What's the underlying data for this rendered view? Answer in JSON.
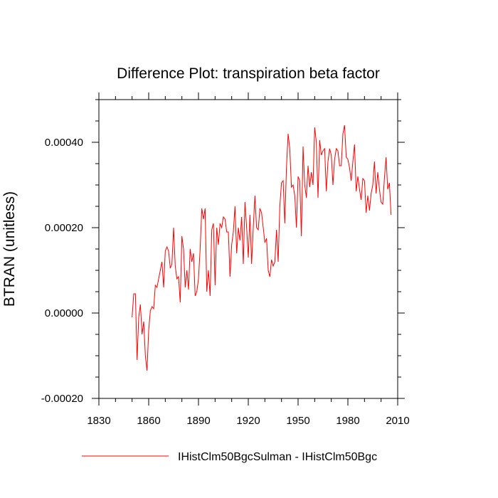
{
  "chart_data": {
    "type": "line",
    "title": "Difference Plot: transpiration beta factor",
    "xlabel": "",
    "ylabel": "BTRAN  (unitless)",
    "xlim": [
      1830,
      2010
    ],
    "ylim": [
      -0.0002,
      0.0005
    ],
    "x_ticks": [
      1830,
      1860,
      1890,
      1920,
      1950,
      1980,
      2010
    ],
    "x_tick_labels": [
      "1830",
      "1860",
      "1890",
      "1920",
      "1950",
      "1980",
      "2010"
    ],
    "y_ticks": [
      -0.0002,
      0,
      0.0002,
      0.0004
    ],
    "y_tick_labels": [
      "-0.00020",
      "0.00000",
      "0.00020",
      "0.00040"
    ],
    "grid": false,
    "legend_position": "bottom",
    "series": [
      {
        "name": "IHistClm50BgcSulman - IHistClm50Bgc",
        "color": "#ff0000",
        "x_start": 1850,
        "x_step": 1,
        "values": [
          -1e-05,
          4.5e-05,
          4.5e-05,
          -0.00011,
          -1e-05,
          2e-05,
          -5e-05,
          -2e-05,
          -0.0001,
          -0.000135,
          -4e-05,
          5e-06,
          1.5e-05,
          1e-05,
          6.5e-05,
          6e-05,
          8e-05,
          0.0001,
          0.00012,
          6e-05,
          0.000145,
          0.000155,
          0.000145,
          0.000105,
          0.000115,
          0.0002,
          0.00011,
          8e-05,
          8.5e-05,
          2.5e-05,
          0.00018,
          0.00015,
          6e-05,
          0.0001,
          5.5e-05,
          0.00015,
          0.00012,
          0.00014,
          4e-05,
          5e-05,
          8e-05,
          0.00015,
          0.000245,
          0.00022,
          0.000245,
          5e-05,
          0.0001,
          4e-05,
          0.000195,
          0.00021,
          6.5e-05,
          0.0002,
          0.00016,
          0.00021,
          0.0002,
          0.000225,
          0.00022,
          0.00019,
          0.00019,
          8.5e-05,
          0.00016,
          0.00019,
          0.00025,
          0.00014,
          0.0002,
          0.00017,
          0.000225,
          0.000115,
          0.00026,
          0.0002,
          0.00013,
          0.00023,
          0.000115,
          0.0002,
          0.000275,
          0.0002,
          0.000195,
          0.000245,
          0.000235,
          0.0002,
          0.000165,
          0.000175,
          0.0001,
          8.5e-05,
          0.000125,
          0.00011,
          0.00012,
          0.000195,
          0.00012,
          0.00025,
          0.000305,
          0.00031,
          0.00021,
          0.00034,
          0.00042,
          0.000385,
          0.000295,
          0.0003,
          0.000275,
          0.0002,
          0.00032,
          0.00031,
          0.00018,
          0.00039,
          0.0003,
          0.00027,
          0.000345,
          0.000295,
          0.00033,
          0.0003,
          0.000435,
          0.0004,
          0.00027,
          0.000405,
          0.00037,
          0.00038,
          0.000385,
          0.000285,
          0.000355,
          0.000385,
          0.00037,
          0.0003,
          0.00036,
          0.000385,
          0.00038,
          0.000345,
          0.000345,
          0.00042,
          0.00044,
          0.000365,
          0.00036,
          0.00034,
          0.00031,
          0.000355,
          0.000395,
          0.000285,
          0.00032,
          0.00029,
          0.000265,
          0.000315,
          0.00031,
          0.000235,
          0.000275,
          0.00024,
          0.00028,
          0.0003,
          0.000355,
          0.00028,
          0.00033,
          0.00029,
          0.00026,
          0.000255,
          0.000315,
          0.000365,
          0.00029,
          0.000305,
          0.00023
        ]
      }
    ]
  }
}
